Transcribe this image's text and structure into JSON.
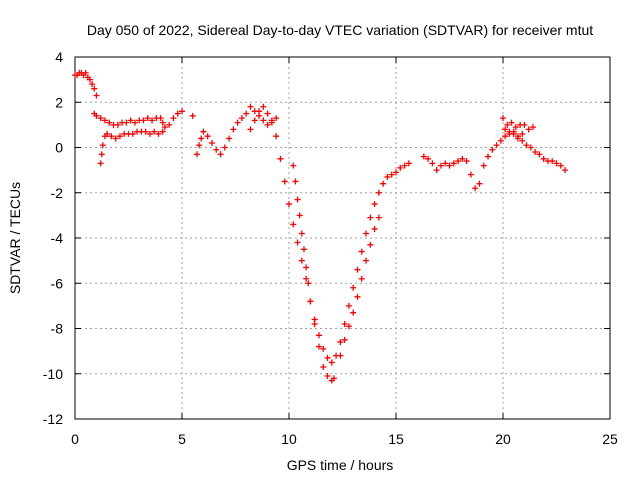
{
  "chart_data": {
    "type": "scatter",
    "title": "Day 050 of 2022, Sidereal Day-to-day VTEC variation (SDTVAR) for receiver mtut",
    "xlabel": "GPS time / hours",
    "ylabel": "SDTVAR / TECUs",
    "xlim": [
      0,
      25
    ],
    "ylim": [
      -12,
      4
    ],
    "xticks": [
      "0",
      "5",
      "10",
      "15",
      "20",
      "25"
    ],
    "yticks": [
      "4",
      "2",
      "0",
      "-2",
      "-4",
      "-6",
      "-8",
      "-10",
      "-12"
    ],
    "grid": true,
    "marker": "+",
    "color": "#ff0000",
    "series": [
      {
        "name": "SDTVAR",
        "x": [
          0.0,
          0.1,
          0.2,
          0.3,
          0.4,
          0.5,
          0.6,
          0.7,
          0.8,
          0.9,
          1.0,
          0.9,
          1.0,
          1.2,
          1.4,
          1.6,
          1.8,
          2.0,
          2.2,
          2.4,
          2.6,
          2.8,
          3.0,
          3.2,
          3.4,
          3.6,
          3.8,
          4.0,
          4.1,
          1.2,
          1.25,
          1.3,
          1.4,
          1.5,
          1.7,
          1.9,
          2.1,
          2.3,
          2.5,
          2.7,
          2.9,
          3.1,
          3.3,
          3.5,
          3.7,
          3.9,
          4.1,
          4.2,
          4.4,
          4.6,
          4.8,
          5.0,
          5.5,
          5.7,
          5.8,
          5.9,
          6.0,
          6.2,
          6.4,
          6.6,
          6.8,
          7.0,
          7.2,
          7.4,
          7.6,
          7.8,
          8.0,
          8.2,
          8.4,
          8.6,
          8.8,
          9.0,
          9.2,
          9.4,
          8.2,
          8.4,
          8.6,
          8.8,
          9.0,
          9.2,
          9.4,
          9.6,
          9.8,
          10.0,
          10.2,
          10.4,
          10.6,
          10.8,
          11.0,
          11.2,
          11.4,
          11.6,
          11.8,
          12.0,
          12.1,
          10.2,
          10.3,
          10.4,
          10.5,
          10.6,
          10.7,
          10.8,
          10.9,
          11.0,
          11.2,
          11.4,
          11.6,
          11.8,
          12.0,
          12.2,
          12.4,
          12.6,
          12.8,
          13.0,
          13.2,
          13.4,
          13.6,
          13.8,
          14.0,
          14.2,
          14.4,
          14.6,
          14.8,
          15.0,
          15.2,
          15.4,
          15.6,
          12.4,
          12.6,
          12.8,
          13.0,
          13.2,
          13.4,
          13.6,
          13.8,
          14.0,
          14.2,
          16.3,
          16.5,
          16.7,
          16.9,
          17.1,
          17.3,
          17.5,
          17.7,
          17.9,
          18.1,
          18.3,
          18.5,
          18.7,
          18.9,
          19.1,
          19.3,
          19.5,
          19.7,
          19.9,
          20.1,
          20.3,
          20.5,
          20.7,
          20.9,
          21.1,
          21.3,
          21.5,
          21.7,
          21.9,
          22.1,
          22.3,
          22.5,
          22.7,
          22.9,
          20.0,
          20.1,
          20.2,
          20.3,
          20.4,
          20.5,
          20.6,
          20.7,
          20.8,
          20.9,
          21.0,
          21.2,
          21.4
        ],
        "y": [
          3.2,
          3.2,
          3.3,
          3.3,
          3.2,
          3.3,
          3.1,
          3.0,
          2.8,
          2.6,
          2.3,
          1.5,
          1.4,
          1.3,
          1.2,
          1.1,
          1.0,
          1.0,
          1.1,
          1.1,
          1.2,
          1.1,
          1.2,
          1.2,
          1.3,
          1.2,
          1.3,
          1.3,
          1.1,
          -0.7,
          -0.3,
          0.1,
          0.5,
          0.6,
          0.5,
          0.4,
          0.5,
          0.6,
          0.6,
          0.6,
          0.7,
          0.7,
          0.7,
          0.6,
          0.7,
          0.6,
          0.7,
          0.9,
          1.0,
          1.3,
          1.5,
          1.6,
          1.4,
          -0.3,
          0.1,
          0.4,
          0.7,
          0.5,
          0.2,
          -0.1,
          -0.3,
          0.0,
          0.4,
          0.8,
          1.1,
          1.3,
          1.5,
          1.8,
          1.6,
          1.4,
          1.2,
          1.0,
          1.1,
          1.3,
          0.8,
          1.2,
          1.6,
          1.8,
          1.5,
          1.2,
          0.5,
          -0.5,
          -1.5,
          -2.5,
          -3.4,
          -4.2,
          -5.0,
          -5.8,
          -6.8,
          -7.8,
          -8.8,
          -9.7,
          -10.1,
          -10.3,
          -10.2,
          -0.8,
          -1.5,
          -2.3,
          -3.0,
          -3.8,
          -4.5,
          -5.3,
          -6.0,
          -6.8,
          -7.6,
          -8.3,
          -8.9,
          -9.3,
          -9.5,
          -9.2,
          -8.6,
          -7.8,
          -7.0,
          -6.2,
          -5.4,
          -4.6,
          -3.8,
          -3.1,
          -2.5,
          -2.0,
          -1.6,
          -1.3,
          -1.2,
          -1.1,
          -0.9,
          -0.8,
          -0.7,
          -9.2,
          -8.5,
          -7.9,
          -7.3,
          -6.6,
          -5.8,
          -5.0,
          -4.3,
          -3.6,
          -3.1,
          -0.4,
          -0.5,
          -0.7,
          -1.0,
          -0.8,
          -0.7,
          -0.8,
          -0.7,
          -0.6,
          -0.5,
          -0.6,
          -1.2,
          -1.8,
          -1.6,
          -0.8,
          -0.4,
          -0.1,
          0.1,
          0.3,
          0.5,
          0.7,
          0.6,
          0.4,
          0.3,
          0.1,
          0.0,
          -0.2,
          -0.3,
          -0.5,
          -0.6,
          -0.6,
          -0.7,
          -0.8,
          -1.0,
          1.3,
          0.8,
          1.0,
          0.6,
          1.1,
          0.7,
          0.9,
          0.5,
          1.0,
          0.6,
          1.0,
          0.8,
          0.9
        ]
      }
    ]
  }
}
